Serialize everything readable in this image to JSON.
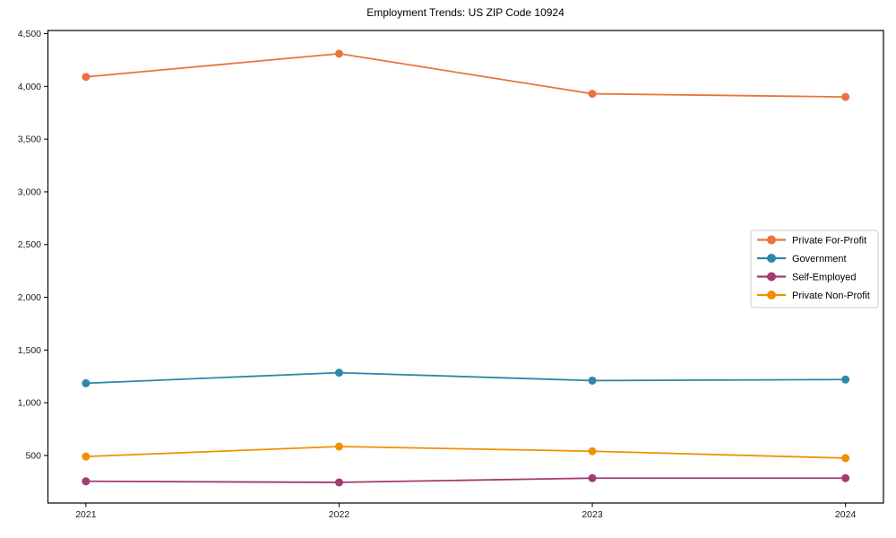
{
  "chart_data": {
    "type": "line",
    "title": "Employment Trends: US ZIP Code 10924",
    "x": [
      2021,
      2022,
      2023,
      2024
    ],
    "x_tick_labels": [
      "2021",
      "2022",
      "2023",
      "2024"
    ],
    "y_tick_values": [
      500,
      1000,
      1500,
      2000,
      2500,
      3000,
      3500,
      4000,
      4500
    ],
    "y_tick_labels": [
      "500",
      "1,000",
      "1,500",
      "2,000",
      "2,500",
      "3,000",
      "3,500",
      "4,000",
      "4,500"
    ],
    "xlim": [
      2020.85,
      2024.15
    ],
    "ylim": [
      49,
      4530
    ],
    "grid": false,
    "legend_position": "center-right",
    "series": [
      {
        "name": "Private For-Profit",
        "color": "#e8743b",
        "values": [
          4090,
          4310,
          3930,
          3900
        ]
      },
      {
        "name": "Government",
        "color": "#2e86ab",
        "values": [
          1185,
          1285,
          1210,
          1220
        ]
      },
      {
        "name": "Self-Employed",
        "color": "#a23b72",
        "values": [
          255,
          245,
          285,
          285
        ]
      },
      {
        "name": "Private Non-Profit",
        "color": "#f18f01",
        "values": [
          490,
          585,
          540,
          475
        ]
      }
    ]
  }
}
